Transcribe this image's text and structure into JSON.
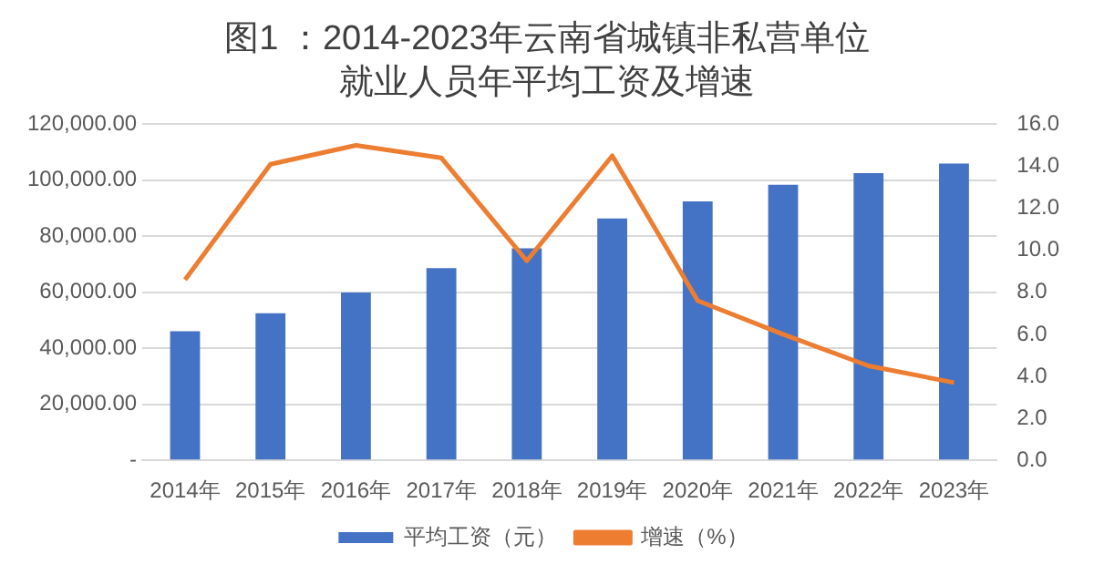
{
  "chart_data": {
    "type": "bar",
    "title": "图1 ：2014-2023年云南省城镇非私营单位就业人员年平均工资及增速",
    "categories": [
      "2014年",
      "2015年",
      "2016年",
      "2017年",
      "2018年",
      "2019年",
      "2020年",
      "2021年",
      "2022年",
      "2023年"
    ],
    "series": [
      {
        "name": "平均工资（元）",
        "color": "#4472c4",
        "values": [
          46100,
          52500,
          59900,
          68600,
          75700,
          86400,
          92500,
          98400,
          102600,
          106000
        ]
      },
      {
        "name": "增速（%）",
        "type": "line",
        "axis": "y2",
        "color": "#ed7d31",
        "values": [
          8.6,
          14.1,
          15.0,
          14.4,
          9.5,
          14.5,
          7.6,
          6.0,
          4.5,
          3.7
        ]
      }
    ],
    "ylim": [
      0,
      120000
    ],
    "yticks": [
      {
        "value": 0,
        "label": "-"
      },
      {
        "value": 20000,
        "label": "20,000.00"
      },
      {
        "value": 40000,
        "label": "40,000.00"
      },
      {
        "value": 60000,
        "label": "60,000.00"
      },
      {
        "value": 80000,
        "label": "80,000.00"
      },
      {
        "value": 100000,
        "label": "100,000.00"
      },
      {
        "value": 120000,
        "label": "120,000.00"
      }
    ],
    "y2lim": [
      0,
      16
    ],
    "y2ticks": [
      {
        "value": 0,
        "label": "0.0"
      },
      {
        "value": 2,
        "label": "2.0"
      },
      {
        "value": 4,
        "label": "4.0"
      },
      {
        "value": 6,
        "label": "6.0"
      },
      {
        "value": 8,
        "label": "8.0"
      },
      {
        "value": 10,
        "label": "10.0"
      },
      {
        "value": 12,
        "label": "12.0"
      },
      {
        "value": 14,
        "label": "14.0"
      },
      {
        "value": 16,
        "label": "16.0"
      }
    ],
    "grid": "y",
    "legend": "bottom",
    "marker": "none"
  }
}
